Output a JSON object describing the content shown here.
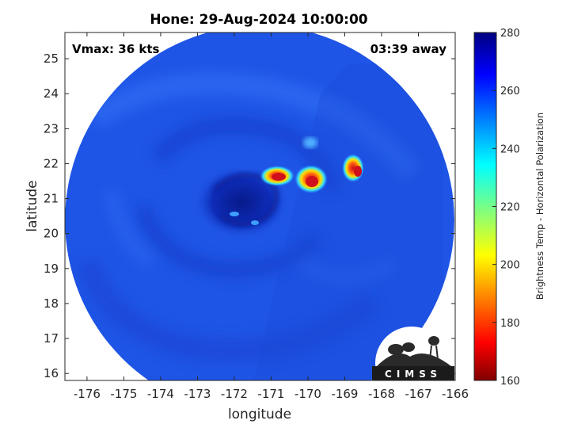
{
  "title": "Hone: 29-Aug-2024 10:00:00",
  "vmax_label": "Vmax: 36 kts",
  "time_label": "03:39 away",
  "logo_text": "CIMSS",
  "xlabel": "longitude",
  "ylabel": "latitude",
  "x_ticks": [
    "-176",
    "-175",
    "-174",
    "-173",
    "-172",
    "-171",
    "-170",
    "-169",
    "-168",
    "-167",
    "-166"
  ],
  "y_ticks": [
    "16",
    "17",
    "18",
    "19",
    "20",
    "21",
    "22",
    "23",
    "24",
    "25"
  ],
  "xlim": [
    -176.6,
    -166
  ],
  "ylim": [
    15.8,
    25.75
  ],
  "colorbar": {
    "label": "Brightness Temp - Horizontal Polarization",
    "ticks": [
      "160",
      "180",
      "200",
      "220",
      "240",
      "260",
      "280"
    ],
    "range": [
      160,
      280
    ],
    "colormap": "jet"
  },
  "colors": {
    "background_field": "#1f55e6",
    "eye": "#0a1f9a",
    "convection": "#e0141e"
  }
}
